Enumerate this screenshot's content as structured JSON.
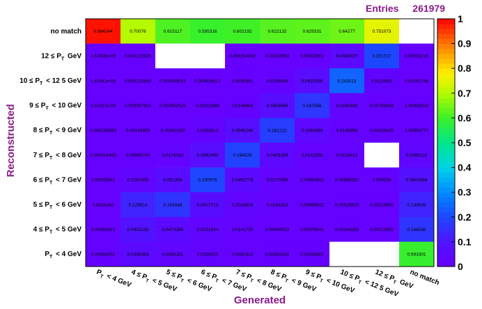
{
  "stats": {
    "label": "Entries",
    "value": "261979"
  },
  "chart_data": {
    "type": "heatmap",
    "xlabel": "Generated",
    "ylabel": "Reconstructed",
    "x_categories": [
      "P_T < 4 GeV",
      "4 ≤ P_T < 5 GeV",
      "5 ≤ P_T < 6 GeV",
      "6 ≤ P_T < 7 GeV",
      "7 ≤ P_T < 8 GeV",
      "8 ≤ P_T < 9 GeV",
      "9 ≤ P_T < 10 GeV",
      "10 ≤ P_T < 12 5 GeV",
      "12 ≤ P_T GeV",
      "no match"
    ],
    "y_categories": [
      "no match",
      "12 ≤ P_T GeV",
      "10 ≤ P_T < 12 5 GeV",
      "9 ≤ P_T < 10 GeV",
      "8 ≤ P_T < 9 GeV",
      "7 ≤ P_T < 8 GeV",
      "6 ≤ P_T < 7 GeV",
      "5 ≤ P_T < 6 GeV",
      "4 ≤ P_T < 5 GeV",
      "P_T < 4 GeV"
    ],
    "cells": [
      [
        "0.984244",
        "0.70076",
        "0.615117",
        "0.595316",
        "0.602192",
        "0.622132",
        "0.629331",
        "0.64277",
        "0.751073",
        ""
      ],
      [
        "4.67806e-06",
        "0.000122635",
        "",
        "",
        "0.000254842",
        "0.00134953",
        "0.00402901",
        "0.0486027",
        "0.201717",
        "0.00063216"
      ],
      [
        "1.40342e-05",
        "0.000122635",
        "0.000435019",
        "0.000624512",
        "0.0030581",
        "0.0158644",
        "0.0610558",
        "0.243013",
        "0.0214592",
        "0.00161746"
      ],
      [
        "4.21027e-05",
        "0.000367916",
        "0.000652529",
        "0.00202966",
        "0.0148858",
        "0.0653566",
        "0.167556",
        "0.0240988",
        "0.00786838",
        "0.00458316"
      ],
      [
        "0.000135564",
        "0.00134903",
        "0.00462208",
        "0.0163414",
        "0.0696248",
        "0.181212",
        "0.0384099",
        "0.0145868",
        "0.00429185",
        "0.00958777"
      ],
      [
        "0.000221429",
        "0.00565744",
        "0.0176183",
        "0.0642493",
        "0.194529",
        "0.0403359",
        "0.0142358",
        "0.0115431",
        "",
        "0.0285131"
      ],
      [
        "0.00055942",
        "0.0281665",
        "0.061354",
        "0.200976",
        "0.0492779",
        "0.0177589",
        "0.00993822",
        "0.00868287",
        "0.009299",
        "0.0843988"
      ],
      [
        "0.0018363",
        "0.129814",
        "0.163448",
        "0.0617713",
        "0.0243828",
        "0.0144324",
        "0.00899812",
        "0.00528529",
        "0.00214592",
        "0.130639"
      ],
      [
        "0.00360613",
        "0.0903135",
        "0.0473385",
        "0.0231694",
        "0.0141735",
        "0.00648523",
        "0.00376041",
        "0.00344259",
        "0.00214592",
        "0.166536"
      ],
      [
        "0.00994202",
        "0.0435063",
        "0.0284181",
        "0.0159225",
        "0.0082314",
        "0.00502324",
        "0.00268601",
        "",
        "",
        "0.593301"
      ]
    ],
    "zlim": [
      0,
      1
    ],
    "colorbar_ticks": [
      "0",
      "0.1",
      "0.2",
      "0.3",
      "0.4",
      "0.5",
      "0.6",
      "0.7",
      "0.8",
      "0.9",
      "1"
    ]
  }
}
